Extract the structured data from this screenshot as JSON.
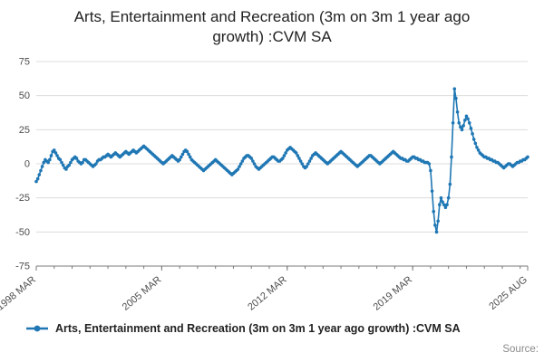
{
  "title": "Arts, Entertainment and Recreation (3m on 3m 1 year ago\ngrowth) :CVM SA",
  "legend": {
    "label": "Arts, Entertainment and Recreation (3m on 3m 1 year ago growth) :CVM SA"
  },
  "source_label": "Source:",
  "colors": {
    "line": "#1f77b4",
    "grid": "#dcdcdc",
    "axis": "#7a7a7a",
    "tick_text": "#4d4d4d"
  },
  "chart_data": {
    "type": "line",
    "title": "Arts, Entertainment and Recreation (3m on 3m 1 year ago growth) :CVM SA",
    "xlabel": "",
    "ylabel": "",
    "ylim": [
      -75,
      75
    ],
    "y_ticks": [
      75,
      50,
      25,
      0,
      -25,
      -50,
      -75
    ],
    "grid": true,
    "legend_position": "bottom",
    "x_start": "1998 MAR",
    "x_end": "2025 AUG",
    "x_tick_labels": [
      "1998 MAR",
      "2005 MAR",
      "2012 MAR",
      "2019 MAR",
      "2025 AUG"
    ],
    "x_tick_indices": [
      0,
      84,
      168,
      252,
      329
    ],
    "minor_tick_every": 12,
    "series": [
      {
        "name": "Arts, Entertainment and Recreation (3m on 3m 1 year ago growth) :CVM SA",
        "values": [
          -13,
          -11,
          -8,
          -5,
          -2,
          1,
          3,
          2,
          1,
          3,
          6,
          9,
          10,
          8,
          6,
          4,
          3,
          1,
          -1,
          -3,
          -4,
          -2,
          -1,
          1,
          3,
          4,
          5,
          4,
          2,
          1,
          0,
          1,
          3,
          3,
          2,
          1,
          0,
          -1,
          -2,
          -1,
          0,
          2,
          3,
          3,
          4,
          5,
          5,
          6,
          7,
          6,
          5,
          6,
          7,
          8,
          7,
          6,
          5,
          6,
          7,
          8,
          9,
          8,
          7,
          8,
          9,
          10,
          9,
          8,
          9,
          10,
          11,
          12,
          13,
          12,
          11,
          10,
          9,
          8,
          7,
          6,
          5,
          4,
          3,
          2,
          1,
          0,
          1,
          2,
          3,
          4,
          5,
          6,
          5,
          4,
          3,
          2,
          3,
          5,
          7,
          9,
          10,
          9,
          7,
          5,
          3,
          2,
          1,
          0,
          -1,
          -2,
          -3,
          -4,
          -5,
          -4,
          -3,
          -2,
          -1,
          0,
          1,
          2,
          3,
          2,
          1,
          0,
          -1,
          -2,
          -3,
          -4,
          -5,
          -6,
          -7,
          -8,
          -7,
          -6,
          -5,
          -4,
          -2,
          0,
          2,
          4,
          5,
          6,
          6,
          5,
          4,
          2,
          0,
          -2,
          -3,
          -4,
          -3,
          -2,
          -1,
          0,
          1,
          2,
          3,
          4,
          5,
          5,
          4,
          3,
          2,
          2,
          3,
          4,
          6,
          8,
          10,
          11,
          12,
          11,
          10,
          9,
          8,
          6,
          4,
          2,
          0,
          -2,
          -3,
          -2,
          0,
          2,
          4,
          6,
          7,
          8,
          7,
          6,
          5,
          4,
          3,
          2,
          1,
          0,
          1,
          2,
          3,
          4,
          5,
          6,
          7,
          8,
          9,
          8,
          7,
          6,
          5,
          4,
          3,
          2,
          1,
          0,
          -1,
          -2,
          -1,
          0,
          1,
          2,
          3,
          4,
          5,
          6,
          6,
          5,
          4,
          3,
          2,
          1,
          0,
          1,
          2,
          3,
          4,
          5,
          6,
          7,
          8,
          9,
          8,
          7,
          6,
          5,
          4,
          4,
          3,
          3,
          2,
          2,
          3,
          4,
          5,
          5,
          4,
          4,
          3,
          3,
          2,
          2,
          1,
          1,
          1,
          0,
          -5,
          -20,
          -35,
          -45,
          -50,
          -42,
          -30,
          -25,
          -28,
          -30,
          -32,
          -30,
          -25,
          -15,
          5,
          30,
          55,
          48,
          38,
          30,
          27,
          25,
          28,
          32,
          35,
          33,
          30,
          26,
          22,
          18,
          15,
          12,
          10,
          8,
          7,
          6,
          5,
          5,
          4,
          4,
          3,
          3,
          2,
          2,
          1,
          1,
          0,
          -1,
          -2,
          -3,
          -2,
          -1,
          0,
          0,
          -1,
          -2,
          -1,
          0,
          1,
          1,
          2,
          2,
          3,
          3,
          4,
          5
        ]
      }
    ]
  }
}
